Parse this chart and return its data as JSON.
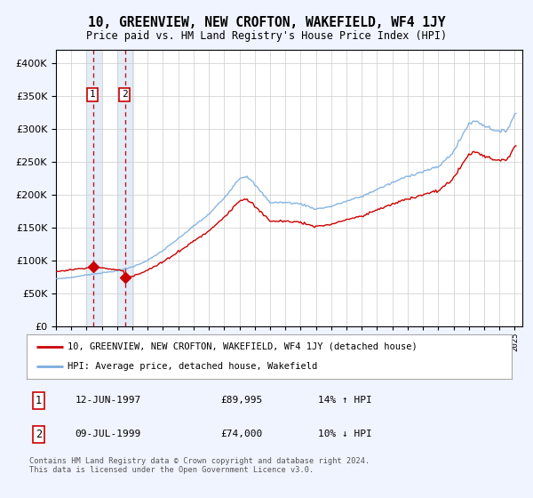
{
  "title": "10, GREENVIEW, NEW CROFTON, WAKEFIELD, WF4 1JY",
  "subtitle": "Price paid vs. HM Land Registry's House Price Index (HPI)",
  "sale1_date": "12-JUN-1997",
  "sale1_price": 89995,
  "sale1_hpi": "14% ↑ HPI",
  "sale1_year": 1997.45,
  "sale2_date": "09-JUL-1999",
  "sale2_price": 74000,
  "sale2_hpi": "10% ↓ HPI",
  "sale2_year": 1999.53,
  "legend_label1": "10, GREENVIEW, NEW CROFTON, WAKEFIELD, WF4 1JY (detached house)",
  "legend_label2": "HPI: Average price, detached house, Wakefield",
  "footnote": "Contains HM Land Registry data © Crown copyright and database right 2024.\nThis data is licensed under the Open Government Licence v3.0.",
  "bg_color": "#f0f4ff",
  "plot_bg_color": "#ffffff",
  "red_color": "#cc0000",
  "blue_color": "#7aade0",
  "shade_color": "#dde8f5",
  "grid_color": "#cccccc",
  "ylim": [
    0,
    420000
  ],
  "yticks": [
    0,
    50000,
    100000,
    150000,
    200000,
    250000,
    300000,
    350000,
    400000
  ],
  "xmin": 1995,
  "xmax": 2025.5
}
